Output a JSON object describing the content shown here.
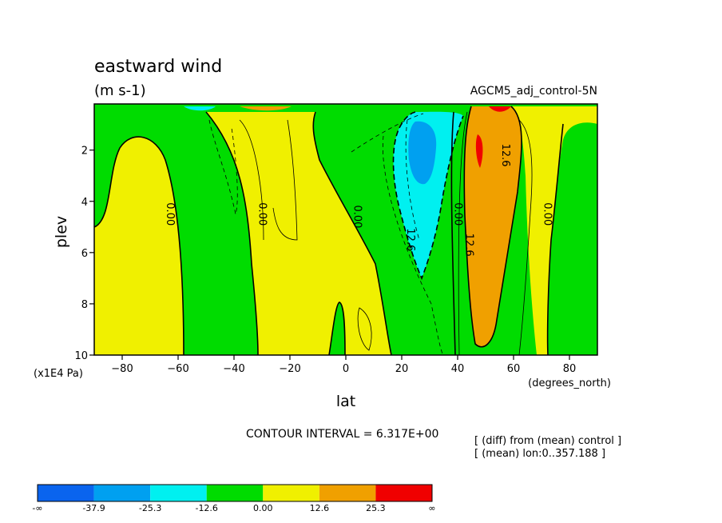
{
  "title": "eastward wind",
  "units": "(m s-1)",
  "run_label": "AGCM5_adj_control-5N",
  "xlabel": "lat",
  "xunits": "(degrees_north)",
  "ylabel": "plev",
  "yunits": "(x1E4 Pa)",
  "contour_interval": "CONTOUR INTERVAL = 6.317E+00",
  "notes": [
    "[ (diff) from (mean) control ]",
    "[ (mean) lon:0..357.188 ]"
  ],
  "colorbar": {
    "labels": [
      "-∞",
      "-37.9",
      "-25.3",
      "-12.6",
      "0.00",
      "12.6",
      "25.3",
      "∞"
    ],
    "colors": [
      "#0a64ee",
      "#00a0f0",
      "#00f0f0",
      "#00dc00",
      "#f0f000",
      "#f0a000",
      "#f00000"
    ]
  },
  "chart_data": {
    "type": "heatmap",
    "title": "eastward wind",
    "subtitle": "(m s-1)",
    "xlabel": "lat",
    "ylabel": "plev",
    "xlim": [
      -90,
      90
    ],
    "ylim": [
      10,
      0.2
    ],
    "x_ticks": [
      "-80",
      "-60",
      "-40",
      "-20",
      "0",
      "20",
      "40",
      "60",
      "80"
    ],
    "y_ticks": [
      "2",
      "4",
      "6",
      "8",
      "10"
    ],
    "contour_interval": 6.317,
    "levels": [
      -37.9,
      -25.3,
      -12.6,
      0.0,
      12.6,
      25.3
    ],
    "contour_labels": [
      {
        "lat": -64,
        "plev": 4.5,
        "text": "0.00"
      },
      {
        "lat": -31,
        "plev": 4.5,
        "text": "0.00"
      },
      {
        "lat": 3,
        "plev": 4.6,
        "text": "0.00"
      },
      {
        "lat": 22,
        "plev": 5.5,
        "text": "12.6"
      },
      {
        "lat": 39,
        "plev": 4.5,
        "text": "0.00"
      },
      {
        "lat": 43,
        "plev": 5.7,
        "text": "12.6"
      },
      {
        "lat": 56,
        "plev": 2.2,
        "text": "12.6"
      },
      {
        "lat": 71,
        "plev": 4.5,
        "text": "0.00"
      }
    ]
  }
}
